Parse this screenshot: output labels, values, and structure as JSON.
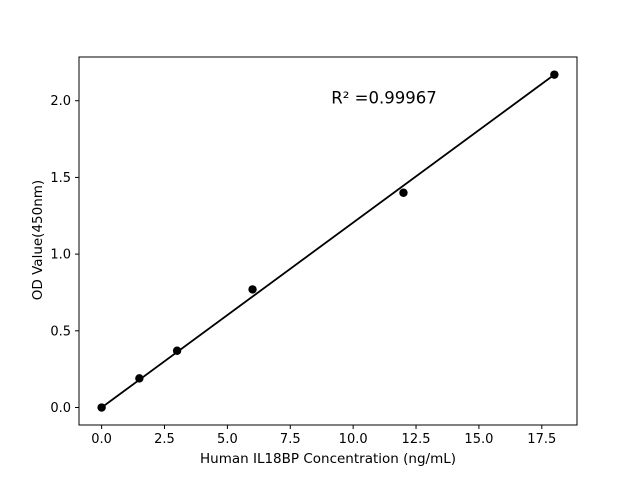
{
  "figure": {
    "background": "#ffffff"
  },
  "chart_data": {
    "type": "scatter",
    "title": "",
    "xlabel": "Human IL18BP Concentration (ng/mL)",
    "ylabel": "OD Value(450nm)",
    "annotation": "R² =0.99967",
    "r_squared": 0.99967,
    "x": [
      0,
      1.5,
      3,
      6,
      12,
      18
    ],
    "y": [
      0.0,
      0.19,
      0.37,
      0.77,
      1.4,
      2.17
    ],
    "fit_line": {
      "x": [
        0,
        18
      ],
      "y": [
        0.0,
        2.17
      ]
    },
    "xticks": {
      "values": [
        0,
        2.5,
        5,
        7.5,
        10,
        12.5,
        15,
        17.5
      ],
      "labels": [
        "0.0",
        "2.5",
        "5.0",
        "7.5",
        "10.0",
        "12.5",
        "15.0",
        "17.5"
      ]
    },
    "yticks": {
      "values": [
        0,
        0.5,
        1,
        1.5,
        2
      ],
      "labels": [
        "0.0",
        "0.5",
        "1.0",
        "1.5",
        "2.0"
      ]
    },
    "xlim": [
      -0.9,
      18.9
    ],
    "ylim": [
      -0.114,
      2.285
    ],
    "grid": false,
    "legend": null,
    "color": "#000000"
  }
}
